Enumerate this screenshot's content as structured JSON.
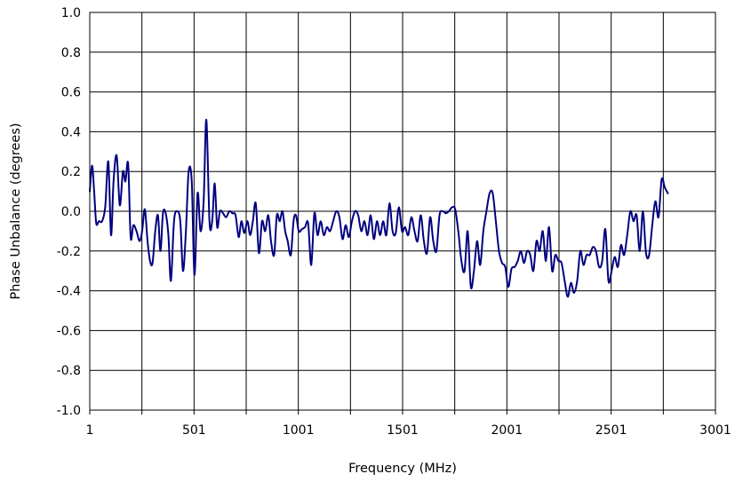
{
  "chart_data": {
    "type": "line",
    "title": "",
    "xlabel": "Frequency (MHz)",
    "ylabel": "Phase Unbalance (degrees)",
    "xlim": [
      1,
      3001
    ],
    "ylim": [
      -1.0,
      1.0
    ],
    "grid": true,
    "legend": "none",
    "x_ticks": [
      1,
      251,
      501,
      751,
      1001,
      1251,
      1501,
      1751,
      2001,
      2251,
      2501,
      2751,
      3001
    ],
    "x_tick_labels": [
      "1",
      "",
      "501",
      "",
      "1001",
      "",
      "1501",
      "",
      "2001",
      "",
      "2501",
      "",
      "3001"
    ],
    "y_ticks": [
      -1.0,
      -0.8,
      -0.6,
      -0.4,
      -0.2,
      0.0,
      0.2,
      0.4,
      0.6,
      0.8,
      1.0
    ],
    "y_tick_labels": [
      "-1.0",
      "-0.8",
      "-0.6",
      "-0.4",
      "-0.2",
      "0.0",
      "0.2",
      "0.4",
      "0.6",
      "0.8",
      "1.0"
    ],
    "series": [
      {
        "color": "#000080",
        "points": [
          [
            1,
            0.1
          ],
          [
            12,
            0.23
          ],
          [
            22,
            0.1
          ],
          [
            32,
            -0.06
          ],
          [
            45,
            -0.05
          ],
          [
            60,
            -0.05
          ],
          [
            75,
            0.02
          ],
          [
            90,
            0.25
          ],
          [
            103,
            -0.12
          ],
          [
            115,
            0.15
          ],
          [
            130,
            0.28
          ],
          [
            145,
            0.03
          ],
          [
            160,
            0.2
          ],
          [
            172,
            0.15
          ],
          [
            185,
            0.24
          ],
          [
            197,
            -0.13
          ],
          [
            210,
            -0.07
          ],
          [
            225,
            -0.1
          ],
          [
            240,
            -0.15
          ],
          [
            252,
            -0.1
          ],
          [
            265,
            0.01
          ],
          [
            278,
            -0.15
          ],
          [
            290,
            -0.25
          ],
          [
            302,
            -0.26
          ],
          [
            315,
            -0.1
          ],
          [
            328,
            -0.02
          ],
          [
            340,
            -0.2
          ],
          [
            352,
            -0.01
          ],
          [
            365,
            -0.01
          ],
          [
            378,
            -0.12
          ],
          [
            390,
            -0.35
          ],
          [
            405,
            -0.05
          ],
          [
            420,
            0.0
          ],
          [
            435,
            -0.05
          ],
          [
            448,
            -0.3
          ],
          [
            462,
            -0.1
          ],
          [
            475,
            0.2
          ],
          [
            490,
            0.15
          ],
          [
            503,
            -0.32
          ],
          [
            518,
            0.09
          ],
          [
            532,
            -0.1
          ],
          [
            547,
            0.05
          ],
          [
            560,
            0.46
          ],
          [
            575,
            -0.05
          ],
          [
            588,
            -0.05
          ],
          [
            600,
            0.14
          ],
          [
            612,
            -0.08
          ],
          [
            625,
            0.0
          ],
          [
            640,
            -0.01
          ],
          [
            655,
            -0.03
          ],
          [
            670,
            0.0
          ],
          [
            685,
            -0.01
          ],
          [
            700,
            -0.02
          ],
          [
            715,
            -0.13
          ],
          [
            728,
            -0.05
          ],
          [
            742,
            -0.11
          ],
          [
            757,
            -0.05
          ],
          [
            770,
            -0.12
          ],
          [
            783,
            -0.05
          ],
          [
            797,
            0.04
          ],
          [
            812,
            -0.21
          ],
          [
            827,
            -0.05
          ],
          [
            842,
            -0.1
          ],
          [
            857,
            -0.02
          ],
          [
            870,
            -0.15
          ],
          [
            885,
            -0.22
          ],
          [
            898,
            -0.02
          ],
          [
            912,
            -0.05
          ],
          [
            925,
            0.0
          ],
          [
            938,
            -0.1
          ],
          [
            950,
            -0.15
          ],
          [
            965,
            -0.22
          ],
          [
            978,
            -0.05
          ],
          [
            990,
            -0.02
          ],
          [
            1003,
            -0.1
          ],
          [
            1018,
            -0.09
          ],
          [
            1033,
            -0.08
          ],
          [
            1048,
            -0.06
          ],
          [
            1063,
            -0.27
          ],
          [
            1078,
            -0.01
          ],
          [
            1093,
            -0.12
          ],
          [
            1108,
            -0.05
          ],
          [
            1123,
            -0.12
          ],
          [
            1138,
            -0.08
          ],
          [
            1153,
            -0.1
          ],
          [
            1168,
            -0.05
          ],
          [
            1183,
            0.0
          ],
          [
            1198,
            -0.03
          ],
          [
            1213,
            -0.14
          ],
          [
            1228,
            -0.07
          ],
          [
            1243,
            -0.13
          ],
          [
            1258,
            -0.05
          ],
          [
            1273,
            0.0
          ],
          [
            1288,
            -0.02
          ],
          [
            1303,
            -0.1
          ],
          [
            1318,
            -0.05
          ],
          [
            1333,
            -0.12
          ],
          [
            1348,
            -0.02
          ],
          [
            1363,
            -0.14
          ],
          [
            1378,
            -0.05
          ],
          [
            1393,
            -0.12
          ],
          [
            1408,
            -0.05
          ],
          [
            1423,
            -0.12
          ],
          [
            1438,
            0.04
          ],
          [
            1453,
            -0.1
          ],
          [
            1468,
            -0.11
          ],
          [
            1483,
            0.02
          ],
          [
            1498,
            -0.1
          ],
          [
            1513,
            -0.08
          ],
          [
            1528,
            -0.12
          ],
          [
            1543,
            -0.03
          ],
          [
            1558,
            -0.1
          ],
          [
            1573,
            -0.15
          ],
          [
            1588,
            -0.02
          ],
          [
            1603,
            -0.15
          ],
          [
            1618,
            -0.21
          ],
          [
            1633,
            -0.03
          ],
          [
            1648,
            -0.15
          ],
          [
            1663,
            -0.2
          ],
          [
            1678,
            -0.02
          ],
          [
            1693,
            0.0
          ],
          [
            1708,
            -0.01
          ],
          [
            1723,
            0.0
          ],
          [
            1738,
            0.02
          ],
          [
            1753,
            0.01
          ],
          [
            1768,
            -0.1
          ],
          [
            1783,
            -0.25
          ],
          [
            1798,
            -0.3
          ],
          [
            1813,
            -0.1
          ],
          [
            1828,
            -0.38
          ],
          [
            1843,
            -0.3
          ],
          [
            1858,
            -0.15
          ],
          [
            1873,
            -0.27
          ],
          [
            1888,
            -0.1
          ],
          [
            1903,
            0.0
          ],
          [
            1918,
            0.09
          ],
          [
            1933,
            0.09
          ],
          [
            1948,
            -0.05
          ],
          [
            1963,
            -0.2
          ],
          [
            1978,
            -0.26
          ],
          [
            1993,
            -0.28
          ],
          [
            2008,
            -0.38
          ],
          [
            2023,
            -0.29
          ],
          [
            2038,
            -0.28
          ],
          [
            2053,
            -0.25
          ],
          [
            2068,
            -0.2
          ],
          [
            2083,
            -0.26
          ],
          [
            2098,
            -0.2
          ],
          [
            2113,
            -0.22
          ],
          [
            2128,
            -0.3
          ],
          [
            2143,
            -0.15
          ],
          [
            2158,
            -0.2
          ],
          [
            2173,
            -0.1
          ],
          [
            2188,
            -0.25
          ],
          [
            2203,
            -0.08
          ],
          [
            2218,
            -0.3
          ],
          [
            2233,
            -0.22
          ],
          [
            2248,
            -0.25
          ],
          [
            2263,
            -0.26
          ],
          [
            2278,
            -0.35
          ],
          [
            2293,
            -0.43
          ],
          [
            2308,
            -0.36
          ],
          [
            2323,
            -0.41
          ],
          [
            2338,
            -0.35
          ],
          [
            2353,
            -0.2
          ],
          [
            2368,
            -0.27
          ],
          [
            2383,
            -0.22
          ],
          [
            2398,
            -0.22
          ],
          [
            2413,
            -0.18
          ],
          [
            2428,
            -0.2
          ],
          [
            2443,
            -0.28
          ],
          [
            2458,
            -0.25
          ],
          [
            2473,
            -0.09
          ],
          [
            2488,
            -0.35
          ],
          [
            2503,
            -0.3
          ],
          [
            2518,
            -0.23
          ],
          [
            2533,
            -0.28
          ],
          [
            2548,
            -0.17
          ],
          [
            2563,
            -0.22
          ],
          [
            2578,
            -0.12
          ],
          [
            2593,
            0.0
          ],
          [
            2608,
            -0.05
          ],
          [
            2623,
            -0.02
          ],
          [
            2638,
            -0.2
          ],
          [
            2653,
            0.0
          ],
          [
            2668,
            -0.21
          ],
          [
            2683,
            -0.22
          ],
          [
            2698,
            -0.07
          ],
          [
            2713,
            0.05
          ],
          [
            2728,
            -0.03
          ],
          [
            2743,
            0.16
          ],
          [
            2758,
            0.12
          ],
          [
            2773,
            0.09
          ]
        ]
      }
    ]
  }
}
